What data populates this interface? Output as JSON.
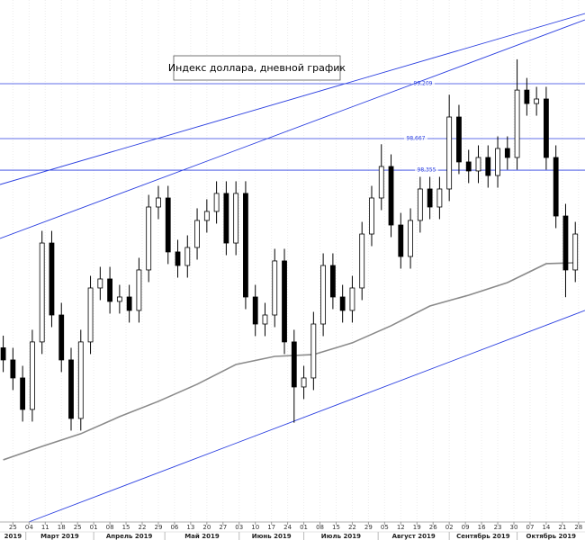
{
  "chart_data": {
    "type": "candlestick",
    "title": "Индекс доллара, дневной график",
    "xlim": [
      "2019-02-19",
      "2019-10-30"
    ],
    "ylim": [
      94.879,
      100.036
    ],
    "xticks": [
      {
        "value": "2019-02-25",
        "label": "25"
      },
      {
        "value": "2019-03-04",
        "label": "04"
      },
      {
        "value": "2019-03-11",
        "label": "11"
      },
      {
        "value": "2019-03-18",
        "label": "18"
      },
      {
        "value": "2019-03-25",
        "label": "25"
      },
      {
        "value": "2019-04-01",
        "label": "01"
      },
      {
        "value": "2019-04-08",
        "label": "08"
      },
      {
        "value": "2019-04-15",
        "label": "15"
      },
      {
        "value": "2019-04-22",
        "label": "22"
      },
      {
        "value": "2019-04-29",
        "label": "29"
      },
      {
        "value": "2019-05-06",
        "label": "06"
      },
      {
        "value": "2019-05-13",
        "label": "13"
      },
      {
        "value": "2019-05-20",
        "label": "20"
      },
      {
        "value": "2019-05-27",
        "label": "27"
      },
      {
        "value": "2019-06-03",
        "label": "03"
      },
      {
        "value": "2019-06-10",
        "label": "10"
      },
      {
        "value": "2019-06-17",
        "label": "17"
      },
      {
        "value": "2019-06-24",
        "label": "24"
      },
      {
        "value": "2019-07-01",
        "label": "01"
      },
      {
        "value": "2019-07-08",
        "label": "08"
      },
      {
        "value": "2019-07-15",
        "label": "15"
      },
      {
        "value": "2019-07-22",
        "label": "22"
      },
      {
        "value": "2019-07-29",
        "label": "29"
      },
      {
        "value": "2019-08-05",
        "label": "05"
      },
      {
        "value": "2019-08-12",
        "label": "12"
      },
      {
        "value": "2019-08-19",
        "label": "19"
      },
      {
        "value": "2019-08-26",
        "label": "26"
      },
      {
        "value": "2019-09-02",
        "label": "02"
      },
      {
        "value": "2019-09-09",
        "label": "09"
      },
      {
        "value": "2019-09-16",
        "label": "16"
      },
      {
        "value": "2019-09-23",
        "label": "23"
      },
      {
        "value": "2019-09-30",
        "label": "30"
      },
      {
        "value": "2019-10-07",
        "label": "07"
      },
      {
        "value": "2019-10-14",
        "label": "14"
      },
      {
        "value": "2019-10-21",
        "label": "21"
      },
      {
        "value": "2019-10-28",
        "label": "28"
      }
    ],
    "months": [
      {
        "value": "2019-02-01",
        "label": "2019"
      },
      {
        "value": "2019-03-01",
        "label": "Март 2019"
      },
      {
        "value": "2019-04-01",
        "label": "Апрель 2019"
      },
      {
        "value": "2019-05-01",
        "label": "Май 2019"
      },
      {
        "value": "2019-06-01",
        "label": "Июнь 2019"
      },
      {
        "value": "2019-07-01",
        "label": "Июль 2019"
      },
      {
        "value": "2019-08-01",
        "label": "Август 2019"
      },
      {
        "value": "2019-09-01",
        "label": "Сентябрь 2019"
      },
      {
        "value": "2019-10-01",
        "label": "Октябрь 2019"
      }
    ],
    "levels": [
      {
        "value": 99.209,
        "label": "99,209"
      },
      {
        "value": 98.667,
        "label": "98,667"
      },
      {
        "value": 98.355,
        "label": "98,355"
      }
    ],
    "lines": [
      {
        "start": [
          "2019-02-19",
          98.213
        ],
        "end": [
          "2019-10-30",
          99.902
        ]
      },
      {
        "start": [
          "2019-02-19",
          97.68
        ],
        "end": [
          "2019-10-30",
          99.84
        ]
      },
      {
        "start": [
          "2019-03-04",
          94.88
        ],
        "end": [
          "2019-10-30",
          96.969
        ]
      }
    ],
    "line_color": "#2b3fe0",
    "ma_color": "#8a8a8a",
    "up_color": "#ffffff",
    "down_color": "#000000",
    "candles": {
      "x": [
        "2019-02-20",
        "2019-02-25",
        "2019-02-28",
        "2019-03-05",
        "2019-03-08",
        "2019-03-13",
        "2019-03-18",
        "2019-03-21",
        "2019-03-26",
        "2019-03-29",
        "2019-04-03",
        "2019-04-08",
        "2019-04-11",
        "2019-04-16",
        "2019-04-19",
        "2019-04-24",
        "2019-04-29",
        "2019-05-02",
        "2019-05-07",
        "2019-05-10",
        "2019-05-15",
        "2019-05-20",
        "2019-05-23",
        "2019-05-28",
        "2019-05-31",
        "2019-06-05",
        "2019-06-10",
        "2019-06-13",
        "2019-06-18",
        "2019-06-21",
        "2019-06-26",
        "2019-07-01",
        "2019-07-04",
        "2019-07-09",
        "2019-07-12",
        "2019-07-17",
        "2019-07-22",
        "2019-07-25",
        "2019-07-30",
        "2019-08-02",
        "2019-08-07",
        "2019-08-12",
        "2019-08-15",
        "2019-08-20",
        "2019-08-23",
        "2019-08-28",
        "2019-09-02",
        "2019-09-05",
        "2019-09-10",
        "2019-09-13",
        "2019-09-18",
        "2019-09-23",
        "2019-09-26",
        "2019-10-01",
        "2019-10-04",
        "2019-10-09",
        "2019-10-14",
        "2019-10-17",
        "2019-10-22",
        "2019-10-25"
      ],
      "open": [
        96.6,
        96.48,
        96.302,
        95.991,
        96.658,
        97.635,
        96.924,
        96.48,
        95.902,
        96.658,
        97.191,
        97.28,
        97.058,
        97.102,
        96.969,
        97.369,
        97.991,
        98.08,
        97.547,
        97.413,
        97.591,
        97.858,
        97.947,
        98.125,
        97.635,
        98.125,
        97.102,
        96.835,
        96.924,
        97.458,
        96.658,
        96.213,
        96.302,
        96.835,
        97.413,
        97.102,
        96.969,
        97.191,
        97.724,
        98.08,
        98.391,
        97.813,
        97.502,
        97.858,
        98.169,
        97.991,
        98.169,
        98.88,
        98.436,
        98.347,
        98.48,
        98.302,
        98.569,
        98.48,
        99.146,
        99.013,
        99.058,
        98.48,
        97.902,
        97.369
      ],
      "high": [
        96.72,
        96.6,
        96.422,
        96.778,
        97.755,
        97.755,
        97.044,
        96.6,
        96.778,
        97.311,
        97.4,
        97.4,
        97.222,
        97.222,
        97.489,
        98.111,
        98.2,
        98.2,
        97.667,
        97.711,
        97.978,
        98.067,
        98.245,
        98.245,
        98.245,
        98.245,
        97.222,
        97.044,
        97.578,
        97.578,
        96.778,
        96.422,
        96.955,
        97.533,
        97.533,
        97.222,
        97.311,
        97.844,
        98.2,
        98.611,
        98.511,
        97.933,
        97.978,
        98.289,
        98.289,
        98.289,
        99.1,
        99.0,
        98.556,
        98.6,
        98.6,
        98.689,
        98.689,
        99.45,
        99.266,
        99.178,
        99.178,
        98.6,
        98.022,
        97.844
      ],
      "low": [
        96.36,
        96.182,
        95.871,
        95.871,
        96.538,
        96.804,
        96.36,
        95.782,
        95.782,
        96.538,
        97.071,
        96.938,
        96.938,
        96.849,
        96.849,
        97.249,
        97.871,
        97.427,
        97.293,
        97.293,
        97.471,
        97.738,
        97.827,
        97.515,
        97.515,
        96.982,
        96.715,
        96.715,
        96.804,
        96.538,
        95.86,
        96.093,
        96.182,
        96.715,
        96.982,
        96.849,
        96.849,
        97.071,
        97.604,
        97.96,
        97.693,
        97.382,
        97.382,
        97.738,
        97.871,
        97.871,
        98.049,
        98.316,
        98.227,
        98.227,
        98.182,
        98.182,
        98.36,
        98.36,
        98.893,
        98.893,
        98.36,
        97.782,
        97.1,
        97.249
      ],
      "close": [
        96.48,
        96.302,
        95.991,
        96.658,
        97.635,
        96.924,
        96.48,
        95.902,
        96.658,
        97.191,
        97.28,
        97.058,
        97.102,
        96.969,
        97.369,
        97.991,
        98.08,
        97.547,
        97.413,
        97.591,
        97.858,
        97.947,
        98.125,
        97.635,
        98.125,
        97.102,
        96.835,
        96.924,
        97.458,
        96.658,
        96.213,
        96.302,
        96.835,
        97.413,
        97.102,
        96.969,
        97.191,
        97.724,
        98.08,
        98.391,
        97.813,
        97.502,
        97.858,
        98.169,
        97.991,
        98.169,
        98.88,
        98.436,
        98.347,
        98.48,
        98.302,
        98.569,
        98.48,
        99.146,
        99.013,
        99.058,
        98.48,
        97.902,
        97.369,
        97.724
      ]
    },
    "ma": {
      "x": [
        "2019-02-20",
        "2019-03-08",
        "2019-03-26",
        "2019-04-11",
        "2019-04-29",
        "2019-05-15",
        "2019-05-31",
        "2019-06-18",
        "2019-07-04",
        "2019-07-22",
        "2019-08-07",
        "2019-08-23",
        "2019-09-10",
        "2019-09-26",
        "2019-10-14",
        "2019-10-25"
      ],
      "values": [
        95.493,
        95.626,
        95.751,
        95.92,
        96.071,
        96.24,
        96.435,
        96.515,
        96.533,
        96.649,
        96.818,
        97.013,
        97.12,
        97.244,
        97.431,
        97.44
      ]
    }
  }
}
